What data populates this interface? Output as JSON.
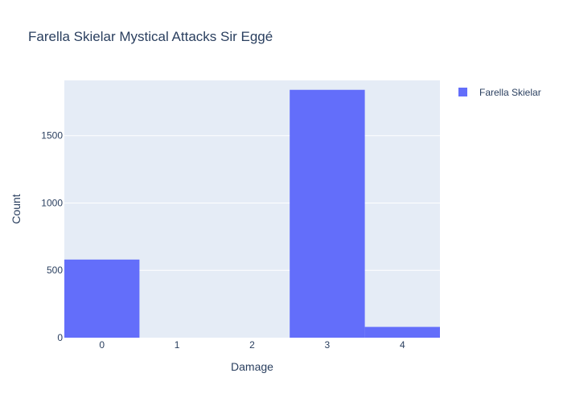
{
  "chart_data": {
    "type": "bar",
    "title": "Farella Skielar Mystical Attacks Sir Eggé",
    "xlabel": "Damage",
    "ylabel": "Count",
    "categories": [
      "0",
      "1",
      "2",
      "3",
      "4"
    ],
    "series": [
      {
        "name": "Farella Skielar",
        "values": [
          580,
          0,
          0,
          1840,
          80
        ],
        "color": "#636efa"
      }
    ],
    "ylim": [
      0,
      1910
    ],
    "yticks": [
      0,
      500,
      1000,
      1500
    ],
    "ytick_labels": [
      "0",
      "500",
      "1000",
      "1500"
    ],
    "grid": true,
    "legend_position": "top-right",
    "plot_background": "#e5ecf6"
  }
}
